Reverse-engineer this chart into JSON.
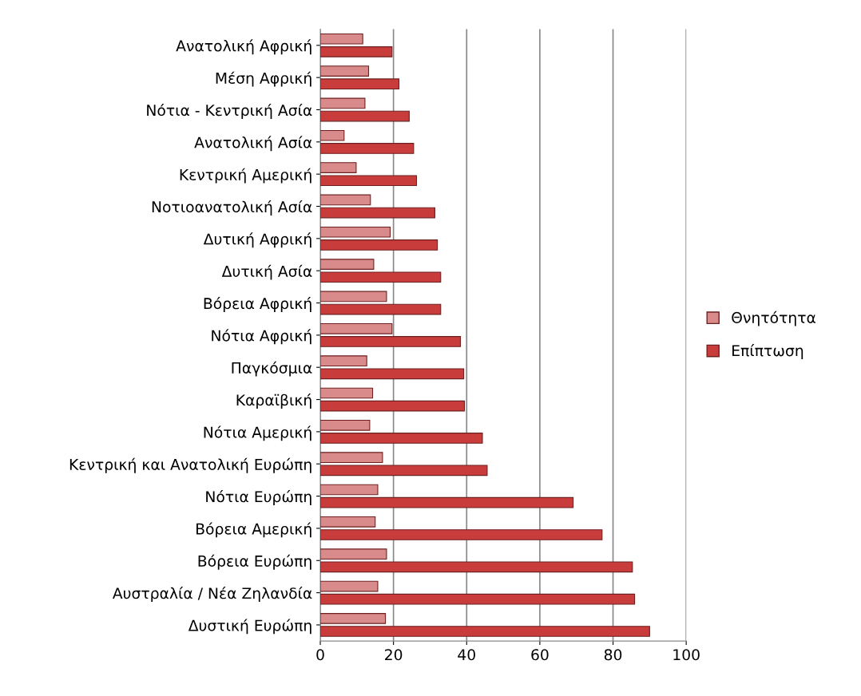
{
  "chart_data": {
    "type": "bar",
    "orientation": "horizontal",
    "categories": [
      "Ανατολική Αφρική",
      "Μέση Αφρική",
      "Νότια - Κεντρική Ασία",
      "Ανατολική Ασία",
      "Κεντρική Αμερική",
      "Νοτιοανατολική Ασία",
      "Δυτική Αφρική",
      "Δυτική Ασία",
      "Βόρεια Αφρική",
      "Νότια Αφρική",
      "Παγκόσμια",
      "Καραϊβική",
      "Νότια Αμερική",
      "Κεντρική και Ανατολική Ευρώπη",
      "Νότια Ευρώπη",
      "Βόρεια Αμερική",
      "Βόρεια Ευρώπη",
      "Αυστραλία / Νέα Ζηλανδία",
      "Δυστική Ευρώπη"
    ],
    "series": [
      {
        "name": "Θνητότητα",
        "color": "#d98a8a",
        "values": [
          11.6,
          13.2,
          12.2,
          6.5,
          9.8,
          13.7,
          19.1,
          14.6,
          18.1,
          19.6,
          12.7,
          14.3,
          13.5,
          17.0,
          15.7,
          15.0,
          18.1,
          15.7,
          17.8
        ]
      },
      {
        "name": "Επίπτωση",
        "color": "#c83c3c",
        "values": [
          19.6,
          21.5,
          24.3,
          25.5,
          26.3,
          31.3,
          32.0,
          32.9,
          32.9,
          38.3,
          39.2,
          39.4,
          44.3,
          45.6,
          69.1,
          77.0,
          85.3,
          85.9,
          90.0
        ]
      }
    ],
    "xlim": [
      0,
      100
    ],
    "xticks": [
      0,
      20,
      40,
      60,
      80,
      100
    ],
    "grid": "x",
    "legend": "right"
  }
}
